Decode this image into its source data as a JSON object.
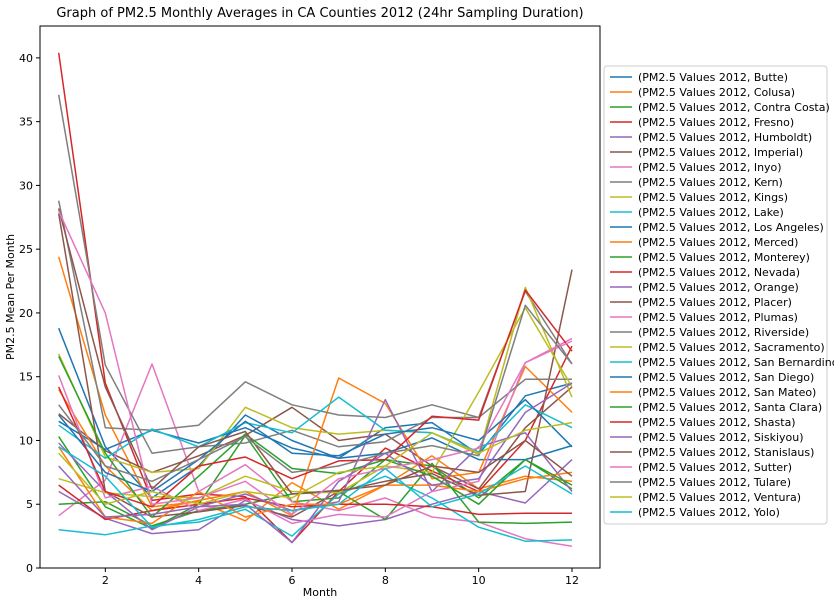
{
  "chart_data": {
    "type": "line",
    "title": "Graph of PM2.5 Monthly Averages in CA Counties 2012 (24hr Sampling Duration)",
    "xlabel": "Month",
    "ylabel": "PM2.5 Mean Per Month",
    "xlim": [
      0.6,
      12.6
    ],
    "ylim": [
      0,
      42.5
    ],
    "xticks": [
      2,
      4,
      6,
      8,
      10,
      12
    ],
    "yticks": [
      0,
      5,
      10,
      15,
      20,
      25,
      30,
      35,
      40
    ],
    "grid": false,
    "legend_position": "right",
    "x": [
      1,
      2,
      3,
      4,
      5,
      6,
      7,
      8,
      9,
      10,
      11,
      12
    ],
    "series": [
      {
        "name": "(PM2.5 Values 2012, Butte)",
        "color": "#1f77b4",
        "values": [
          18.8,
          9.5,
          5.5,
          8.0,
          12.0,
          10.0,
          8.6,
          11.0,
          11.4,
          8.9,
          13.5,
          14.5
        ]
      },
      {
        "name": "(PM2.5 Values 2012, Colusa)",
        "color": "#ff7f0e",
        "values": [
          24.4,
          12.0,
          4.8,
          5.2,
          3.7,
          6.7,
          4.6,
          6.5,
          8.8,
          6.2,
          7.2,
          6.8
        ]
      },
      {
        "name": "(PM2.5 Values 2012, Contra Costa)",
        "color": "#2ca02c",
        "values": [
          10.3,
          4.8,
          3.1,
          5.0,
          10.4,
          5.2,
          5.5,
          8.5,
          8.0,
          5.5,
          8.5,
          6.2
        ]
      },
      {
        "name": "(PM2.5 Values 2012, Fresno)",
        "color": "#d62728",
        "values": [
          40.4,
          14.5,
          5.3,
          5.8,
          5.6,
          2.0,
          6.0,
          9.4,
          7.6,
          6.0,
          10.0,
          17.4
        ]
      },
      {
        "name": "(PM2.5 Values 2012, Humboldt)",
        "color": "#9467bd",
        "values": [
          6.0,
          3.9,
          2.7,
          3.0,
          5.3,
          3.8,
          3.3,
          3.8,
          5.0,
          6.0,
          5.1,
          8.5
        ]
      },
      {
        "name": "(PM2.5 Values 2012, Imperial)",
        "color": "#8c564b",
        "values": [
          12.1,
          9.2,
          7.5,
          8.8,
          10.4,
          12.6,
          10.0,
          10.5,
          8.0,
          6.2,
          11.0,
          14.2
        ]
      },
      {
        "name": "(PM2.5 Values 2012, Inyo)",
        "color": "#e377c2",
        "values": [
          4.1,
          6.9,
          16.0,
          6.0,
          8.1,
          5.2,
          4.5,
          5.5,
          4.0,
          3.6,
          2.3,
          1.7
        ]
      },
      {
        "name": "(PM2.5 Values 2012, Kern)",
        "color": "#7f7f7f",
        "values": [
          37.1,
          15.9,
          9.0,
          9.5,
          9.8,
          10.8,
          9.5,
          9.9,
          11.8,
          11.8,
          21.7,
          16.0
        ]
      },
      {
        "name": "(PM2.5 Values 2012, Kings)",
        "color": "#bcbd22",
        "values": [
          16.8,
          8.7,
          7.5,
          7.8,
          12.6,
          11.0,
          10.5,
          10.8,
          10.6,
          8.9,
          22.0,
          13.4
        ]
      },
      {
        "name": "(PM2.5 Values 2012, Lake)",
        "color": "#17becf",
        "values": [
          3.0,
          2.6,
          3.3,
          3.6,
          4.6,
          2.5,
          5.8,
          7.2,
          5.5,
          3.2,
          2.1,
          2.2
        ]
      },
      {
        "name": "(PM2.5 Values 2012, Los Angeles)",
        "color": "#1f77b4",
        "values": [
          11.5,
          9.3,
          10.8,
          9.8,
          11.0,
          9.4,
          8.6,
          9.0,
          10.2,
          8.5,
          8.5,
          9.6
        ]
      },
      {
        "name": "(PM2.5 Values 2012, Merced)",
        "color": "#ff7f0e",
        "values": [
          14.0,
          8.0,
          4.5,
          5.3,
          6.0,
          4.1,
          14.9,
          12.9,
          7.0,
          7.5,
          15.8,
          12.2
        ]
      },
      {
        "name": "(PM2.5 Values 2012, Monterey)",
        "color": "#2ca02c",
        "values": [
          5.0,
          5.2,
          3.3,
          4.5,
          5.0,
          5.8,
          6.0,
          3.8,
          8.2,
          3.6,
          3.5,
          3.6
        ]
      },
      {
        "name": "(PM2.5 Values 2012, Nevada)",
        "color": "#d62728",
        "values": [
          6.5,
          3.8,
          4.5,
          5.0,
          5.5,
          4.8,
          5.0,
          5.0,
          4.8,
          4.2,
          4.3,
          4.3
        ]
      },
      {
        "name": "(PM2.5 Values 2012, Orange)",
        "color": "#9467bd",
        "values": [
          9.8,
          6.0,
          3.0,
          4.8,
          5.8,
          4.5,
          5.2,
          13.2,
          6.0,
          9.5,
          10.6,
          6.0
        ]
      },
      {
        "name": "(PM2.5 Values 2012, Placer)",
        "color": "#8c564b",
        "values": [
          27.8,
          6.0,
          4.0,
          4.4,
          4.9,
          4.0,
          6.0,
          6.8,
          7.4,
          5.7,
          6.0,
          23.4
        ]
      },
      {
        "name": "(PM2.5 Values 2012, Plumas)",
        "color": "#e377c2",
        "values": [
          15.1,
          5.5,
          6.4,
          4.5,
          5.4,
          3.5,
          4.2,
          4.0,
          6.0,
          6.8,
          16.1,
          18.0
        ]
      },
      {
        "name": "(PM2.5 Values 2012, Riverside)",
        "color": "#7f7f7f",
        "values": [
          28.8,
          11.0,
          10.8,
          11.2,
          14.6,
          12.8,
          12.0,
          11.8,
          12.8,
          11.8,
          14.8,
          14.8
        ]
      },
      {
        "name": "(PM2.5 Values 2012, Sacramento)",
        "color": "#bcbd22",
        "values": [
          7.0,
          5.9,
          5.6,
          5.5,
          7.2,
          6.0,
          5.9,
          8.0,
          7.5,
          13.8,
          20.4,
          14.2
        ]
      },
      {
        "name": "(PM2.5 Values 2012, San Bernardino)",
        "color": "#17becf",
        "values": [
          11.2,
          8.6,
          10.9,
          9.5,
          11.4,
          10.6,
          13.4,
          10.8,
          10.6,
          9.1,
          12.8,
          11.0
        ]
      },
      {
        "name": "(PM2.5 Values 2012, San Diego)",
        "color": "#1f77b4",
        "values": [
          12.0,
          7.5,
          6.0,
          8.5,
          11.5,
          9.0,
          8.8,
          10.5,
          11.0,
          10.0,
          13.2,
          9.5
        ]
      },
      {
        "name": "(PM2.5 Values 2012, San Mateo)",
        "color": "#ff7f0e",
        "values": [
          9.5,
          4.0,
          3.5,
          6.0,
          4.0,
          5.0,
          5.0,
          6.5,
          6.5,
          6.0,
          7.0,
          7.5
        ]
      },
      {
        "name": "(PM2.5 Values 2012, Santa Clara)",
        "color": "#2ca02c",
        "values": [
          16.6,
          9.0,
          4.0,
          7.2,
          10.5,
          7.8,
          7.4,
          8.5,
          7.2,
          5.0,
          8.5,
          6.5
        ]
      },
      {
        "name": "(PM2.5 Values 2012, Shasta)",
        "color": "#d62728",
        "values": [
          14.2,
          6.0,
          4.8,
          8.0,
          8.7,
          7.0,
          8.4,
          8.5,
          11.9,
          11.6,
          21.8,
          17.0
        ]
      },
      {
        "name": "(PM2.5 Values 2012, Siskiyou)",
        "color": "#9467bd",
        "values": [
          8.0,
          4.0,
          4.2,
          4.8,
          5.0,
          2.0,
          6.8,
          9.0,
          6.5,
          7.0,
          12.2,
          14.5
        ]
      },
      {
        "name": "(PM2.5 Values 2012, Stanislaus)",
        "color": "#8c564b",
        "values": [
          28.2,
          14.2,
          6.2,
          9.5,
          10.7,
          5.8,
          6.1,
          6.5,
          8.0,
          7.5,
          10.0,
          7.2
        ]
      },
      {
        "name": "(PM2.5 Values 2012, Sutter)",
        "color": "#e377c2",
        "values": [
          28.0,
          20.0,
          5.0,
          5.5,
          6.8,
          4.2,
          7.0,
          7.8,
          8.5,
          9.4,
          16.1,
          17.8
        ]
      },
      {
        "name": "(PM2.5 Values 2012, Tulare)",
        "color": "#7f7f7f",
        "values": [
          12.8,
          8.0,
          6.8,
          8.5,
          10.3,
          7.5,
          8.0,
          9.0,
          9.6,
          8.8,
          20.6,
          16.0
        ]
      },
      {
        "name": "(PM2.5 Values 2012, Ventura)",
        "color": "#bcbd22",
        "values": [
          9.0,
          5.0,
          6.0,
          5.0,
          6.0,
          5.5,
          7.5,
          8.0,
          10.6,
          9.0,
          10.8,
          11.4
        ]
      },
      {
        "name": "(PM2.5 Values 2012, Yolo)",
        "color": "#17becf",
        "values": [
          9.5,
          7.2,
          3.2,
          3.8,
          4.8,
          4.5,
          5.0,
          7.8,
          4.8,
          5.8,
          8.0,
          5.8
        ]
      }
    ]
  }
}
